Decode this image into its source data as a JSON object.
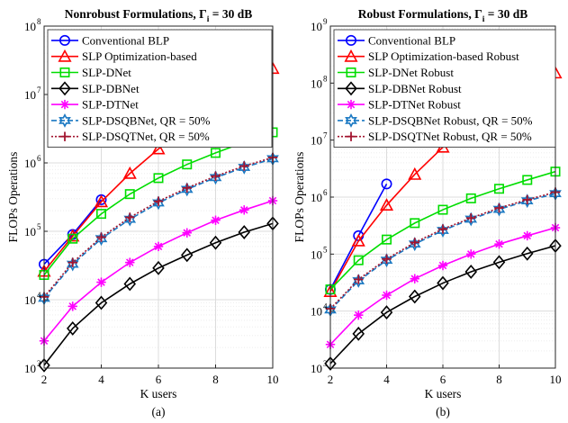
{
  "chart_data": [
    {
      "type": "line",
      "title": "Nonrobust Formulations, Γ",
      "title_sub": "i",
      "title_tail": " = 30 dB",
      "xlabel": "K users",
      "ylabel": "FLOPs Operations",
      "caption": "(a)",
      "yscale": "log",
      "xlim": [
        2,
        10
      ],
      "ylim": [
        1000,
        100000000
      ],
      "x_ticks": [
        "2",
        "4",
        "6",
        "8",
        "10"
      ],
      "y_ticks": [
        {
          "base": "10",
          "exp": "3"
        },
        {
          "base": "10",
          "exp": "4"
        },
        {
          "base": "10",
          "exp": "5"
        },
        {
          "base": "10",
          "exp": "6"
        },
        {
          "base": "10",
          "exp": "7"
        },
        {
          "base": "10",
          "exp": "8"
        }
      ],
      "grid": true,
      "legend_position": "top-left",
      "series": [
        {
          "name": "Conventional BLP",
          "color": "#0000ff",
          "marker": "circle",
          "dash": "solid",
          "x": [
            2,
            3,
            4
          ],
          "values": [
            33000,
            90000,
            290000
          ]
        },
        {
          "name": "SLP Optimization-based",
          "color": "#ff0000",
          "marker": "triangle",
          "dash": "solid",
          "x": [
            2,
            3,
            4,
            5,
            6,
            7,
            8,
            9,
            10
          ],
          "values": [
            26000,
            85000,
            270000,
            700000,
            1600000,
            3200000,
            6500000,
            13000000,
            24000000
          ]
        },
        {
          "name": "SLP-DNet",
          "color": "#00dd00",
          "marker": "square",
          "dash": "solid",
          "x": [
            2,
            3,
            4,
            5,
            6,
            7,
            8,
            9,
            10
          ],
          "values": [
            23000,
            78000,
            180000,
            350000,
            600000,
            950000,
            1400000,
            2000000,
            2800000
          ]
        },
        {
          "name": "SLP-DBNet",
          "color": "#000000",
          "marker": "diamond",
          "dash": "solid",
          "x": [
            2,
            3,
            4,
            5,
            6,
            7,
            8,
            9,
            10
          ],
          "values": [
            1100,
            3800,
            9000,
            17000,
            29000,
            45000,
            68000,
            97000,
            130000
          ]
        },
        {
          "name": "SLP-DTNet",
          "color": "#ff00ff",
          "marker": "asterisk",
          "dash": "solid",
          "x": [
            2,
            3,
            4,
            5,
            6,
            7,
            8,
            9,
            10
          ],
          "values": [
            2500,
            8000,
            18000,
            35000,
            60000,
            95000,
            145000,
            205000,
            280000
          ]
        },
        {
          "name": "SLP-DSQBNet, QR = 50%",
          "color": "#1a78c2",
          "marker": "hexagram",
          "dash": "dash",
          "x": [
            2,
            3,
            4,
            5,
            6,
            7,
            8,
            9,
            10
          ],
          "values": [
            10500,
            33000,
            78000,
            150000,
            260000,
            410000,
            610000,
            860000,
            1150000
          ]
        },
        {
          "name": "SLP-DSQTNet, QR = 50%",
          "color": "#a2142f",
          "marker": "plus",
          "dash": "dot",
          "x": [
            2,
            3,
            4,
            5,
            6,
            7,
            8,
            9,
            10
          ],
          "values": [
            11000,
            35000,
            82000,
            160000,
            275000,
            430000,
            640000,
            900000,
            1200000
          ]
        }
      ]
    },
    {
      "type": "line",
      "title": "Robust Formulations, Γ",
      "title_sub": "i",
      "title_tail": " = 30 dB",
      "xlabel": "K users",
      "ylabel": "FLOPs Operations",
      "caption": "(b)",
      "yscale": "log",
      "xlim": [
        2,
        10
      ],
      "ylim": [
        1000,
        1000000000
      ],
      "x_ticks": [
        "2",
        "4",
        "6",
        "8",
        "10"
      ],
      "y_ticks": [
        {
          "base": "10",
          "exp": "3"
        },
        {
          "base": "10",
          "exp": "4"
        },
        {
          "base": "10",
          "exp": "5"
        },
        {
          "base": "10",
          "exp": "6"
        },
        {
          "base": "10",
          "exp": "7"
        },
        {
          "base": "10",
          "exp": "8"
        },
        {
          "base": "10",
          "exp": "9"
        }
      ],
      "grid": true,
      "legend_position": "top-left",
      "series": [
        {
          "name": "Conventional BLP",
          "color": "#0000ff",
          "marker": "circle",
          "dash": "solid",
          "x": [
            2,
            3,
            4
          ],
          "values": [
            24000,
            210000,
            1700000
          ]
        },
        {
          "name": "SLP Optimization-based Robust",
          "color": "#ff0000",
          "marker": "triangle",
          "dash": "solid",
          "x": [
            2,
            3,
            4,
            5,
            6,
            7,
            8,
            9,
            10
          ],
          "values": [
            22000,
            170000,
            720000,
            2500000,
            7500000,
            18000000,
            40000000,
            80000000,
            150000000
          ]
        },
        {
          "name": "SLP-DNet Robust",
          "color": "#00dd00",
          "marker": "square",
          "dash": "solid",
          "x": [
            2,
            3,
            4,
            5,
            6,
            7,
            8,
            9,
            10
          ],
          "values": [
            24000,
            78000,
            180000,
            350000,
            600000,
            950000,
            1400000,
            2000000,
            2800000
          ]
        },
        {
          "name": "SLP-DBNet Robust",
          "color": "#000000",
          "marker": "diamond",
          "dash": "solid",
          "x": [
            2,
            3,
            4,
            5,
            6,
            7,
            8,
            9,
            10
          ],
          "values": [
            1200,
            4000,
            9500,
            18000,
            31000,
            49000,
            72000,
            102000,
            140000
          ]
        },
        {
          "name": "SLP-DTNet Robust",
          "color": "#ff00ff",
          "marker": "asterisk",
          "dash": "solid",
          "x": [
            2,
            3,
            4,
            5,
            6,
            7,
            8,
            9,
            10
          ],
          "values": [
            2600,
            8500,
            19000,
            37000,
            63000,
            100000,
            150000,
            210000,
            290000
          ]
        },
        {
          "name": "SLP-DSQBNet Robust, QR = 50%",
          "color": "#1a78c2",
          "marker": "hexagram",
          "dash": "dash",
          "x": [
            2,
            3,
            4,
            5,
            6,
            7,
            8,
            9,
            10
          ],
          "values": [
            10500,
            34000,
            78000,
            150000,
            260000,
            410000,
            610000,
            860000,
            1150000
          ]
        },
        {
          "name": "SLP-DSQTNet Robust, QR = 50%",
          "color": "#a2142f",
          "marker": "plus",
          "dash": "dot",
          "x": [
            2,
            3,
            4,
            5,
            6,
            7,
            8,
            9,
            10
          ],
          "values": [
            11000,
            36000,
            82000,
            160000,
            275000,
            430000,
            645000,
            900000,
            1220000
          ]
        }
      ]
    }
  ]
}
